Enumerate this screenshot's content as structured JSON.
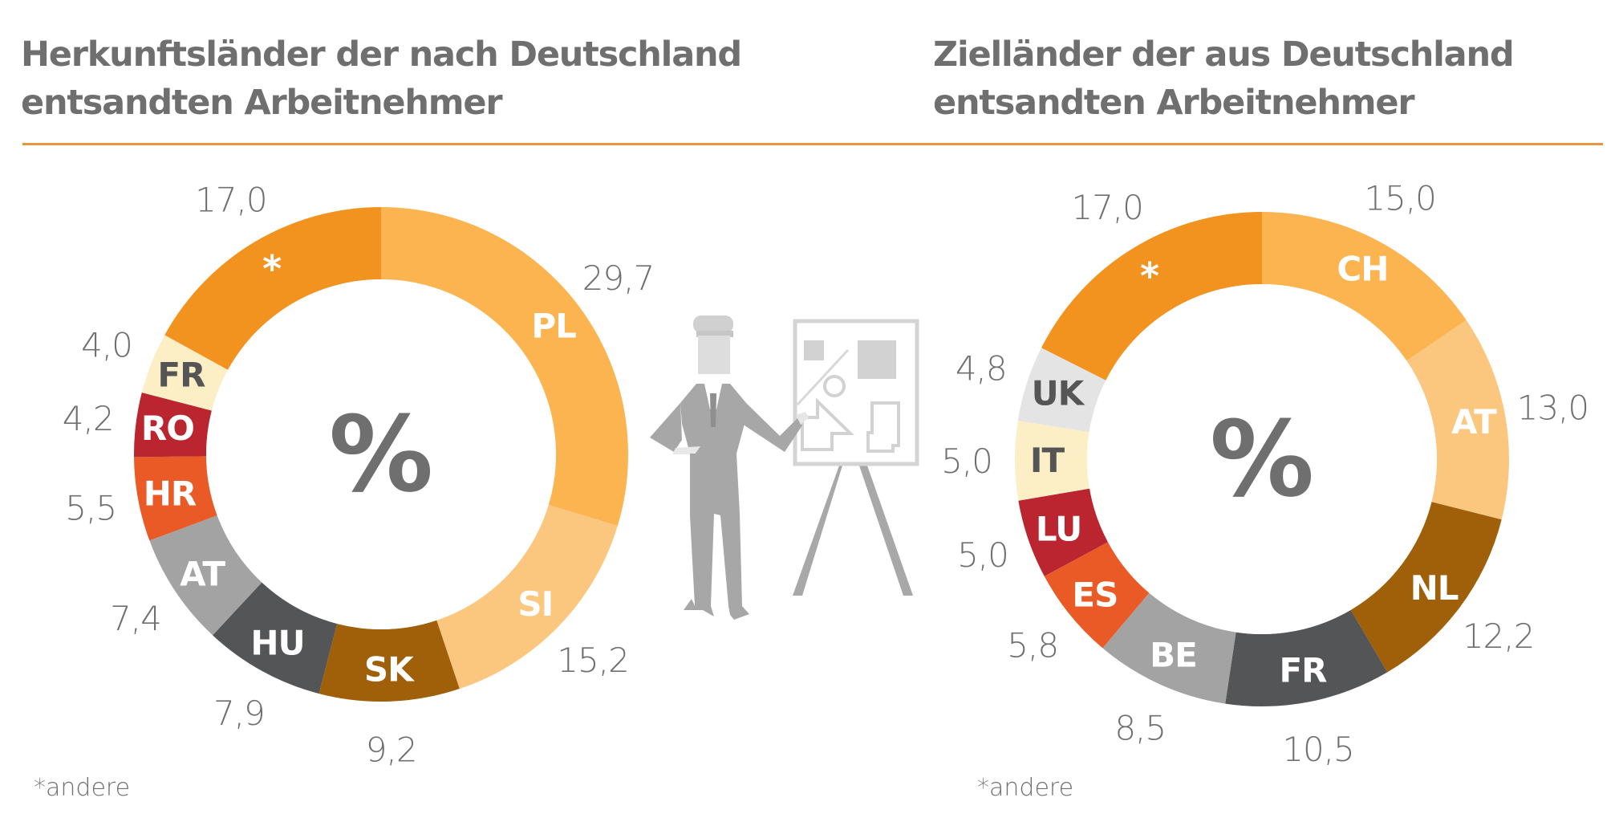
{
  "chart_data": [
    {
      "type": "pie",
      "variant": "donut",
      "title": "Herkunftsländer der nach Deutschland entsandten Arbeitnehmer",
      "title_lines": [
        "Herkunftsländer der nach Deutschland",
        "entsandten Arbeitnehmer"
      ],
      "center_label": "%",
      "footnote": "*andere",
      "unit": "%",
      "start": "top",
      "direction": "clockwise",
      "slices": [
        {
          "label": "PL",
          "value": 29.7,
          "value_label": "29,7",
          "color": "#fbb450",
          "text_color": "#ffffff"
        },
        {
          "label": "SI",
          "value": 15.2,
          "value_label": "15,2",
          "color": "#fbc77f",
          "text_color": "#ffffff"
        },
        {
          "label": "SK",
          "value": 9.2,
          "value_label": "9,2",
          "color": "#a0600a",
          "text_color": "#ffffff"
        },
        {
          "label": "HU",
          "value": 7.9,
          "value_label": "7,9",
          "color": "#545557",
          "text_color": "#ffffff"
        },
        {
          "label": "AT",
          "value": 7.4,
          "value_label": "7,4",
          "color": "#a3a3a3",
          "text_color": "#ffffff"
        },
        {
          "label": "HR",
          "value": 5.5,
          "value_label": "5,5",
          "color": "#ea5a26",
          "text_color": "#ffffff"
        },
        {
          "label": "RO",
          "value": 4.2,
          "value_label": "4,2",
          "color": "#bb2530",
          "text_color": "#ffffff"
        },
        {
          "label": "FR",
          "value": 4.0,
          "value_label": "4,0",
          "color": "#fcefc6",
          "text_color": "#555555"
        },
        {
          "label": "*",
          "value": 17.0,
          "value_label": "17,0",
          "color": "#f29320",
          "text_color": "#ffffff"
        }
      ]
    },
    {
      "type": "pie",
      "variant": "donut",
      "title": "Zielländer der aus Deutschland entsandten Arbeitnehmer",
      "title_lines": [
        "Zielländer der aus Deutschland",
        "entsandten Arbeitnehmer"
      ],
      "center_label": "%",
      "footnote": "*andere",
      "unit": "%",
      "start": "top",
      "direction": "clockwise",
      "slices": [
        {
          "label": "CH",
          "value": 15.0,
          "value_label": "15,0",
          "color": "#fbb450",
          "text_color": "#ffffff"
        },
        {
          "label": "AT",
          "value": 13.0,
          "value_label": "13,0",
          "color": "#fbc77f",
          "text_color": "#ffffff"
        },
        {
          "label": "NL",
          "value": 12.2,
          "value_label": "12,2",
          "color": "#a0600a",
          "text_color": "#ffffff"
        },
        {
          "label": "FR",
          "value": 10.5,
          "value_label": "10,5",
          "color": "#545557",
          "text_color": "#ffffff"
        },
        {
          "label": "BE",
          "value": 8.5,
          "value_label": "8,5",
          "color": "#a3a3a3",
          "text_color": "#ffffff"
        },
        {
          "label": "ES",
          "value": 5.8,
          "value_label": "5,8",
          "color": "#ea5a26",
          "text_color": "#ffffff"
        },
        {
          "label": "LU",
          "value": 5.0,
          "value_label": "5,0",
          "color": "#bb2530",
          "text_color": "#ffffff"
        },
        {
          "label": "IT",
          "value": 5.0,
          "value_label": "5,0",
          "color": "#fcefc6",
          "text_color": "#555555"
        },
        {
          "label": "UK",
          "value": 4.8,
          "value_label": "4,8",
          "color": "#e4e4e4",
          "text_color": "#555555"
        },
        {
          "label": "*",
          "value": 17.0,
          "value_label": "17,0",
          "color": "#f29320",
          "text_color": "#ffffff"
        }
      ]
    }
  ],
  "colors": {
    "title": "#6f6f6f",
    "rule": "#e8963e",
    "value_text": "#6f6f6f",
    "illustration": "#a8a8a8"
  },
  "illustration": {
    "icon": "engineer-presenting-plan-icon"
  }
}
